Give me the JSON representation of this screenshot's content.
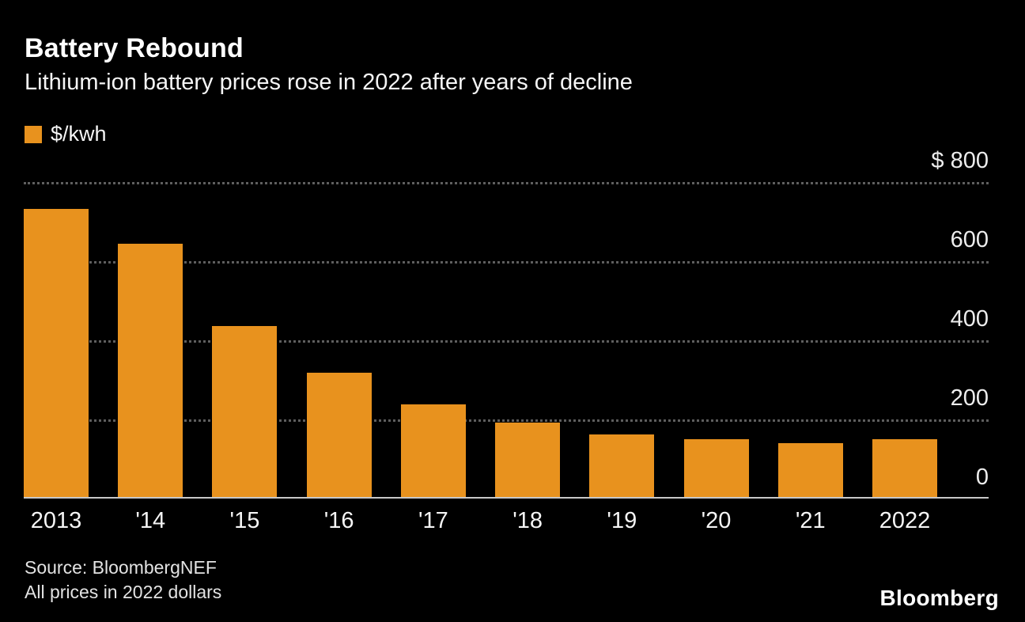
{
  "header": {
    "title": "Battery Rebound",
    "subtitle": "Lithium-ion battery prices rose in 2022 after years of decline"
  },
  "legend": {
    "label": "$/kwh",
    "swatch_color": "#E8921E"
  },
  "chart_data": {
    "type": "bar",
    "title": "Battery Rebound",
    "subtitle": "Lithium-ion battery prices rose in 2022 after years of decline",
    "categories": [
      "2013",
      "'14",
      "'15",
      "'16",
      "'17",
      "'18",
      "'19",
      "'20",
      "'21",
      "2022"
    ],
    "values": [
      732,
      644,
      437,
      319,
      238,
      192,
      163,
      150,
      141,
      151
    ],
    "series_label": "$/kwh",
    "xlabel": "",
    "ylabel": "$/kwh",
    "ylim": [
      0,
      800
    ],
    "yticks": [
      {
        "value": 800,
        "label": "$ 800"
      },
      {
        "value": 600,
        "label": "600"
      },
      {
        "value": 400,
        "label": "400"
      },
      {
        "value": 200,
        "label": "200"
      },
      {
        "value": 0,
        "label": "0"
      }
    ],
    "bar_color": "#E8921E",
    "grid": "horizontal-dotted",
    "legend_position": "top-left",
    "ytick_position": "right"
  },
  "footer": {
    "source_line1": "Source:  BloombergNEF",
    "source_line2": "All prices in 2022 dollars",
    "brand": "Bloomberg"
  }
}
